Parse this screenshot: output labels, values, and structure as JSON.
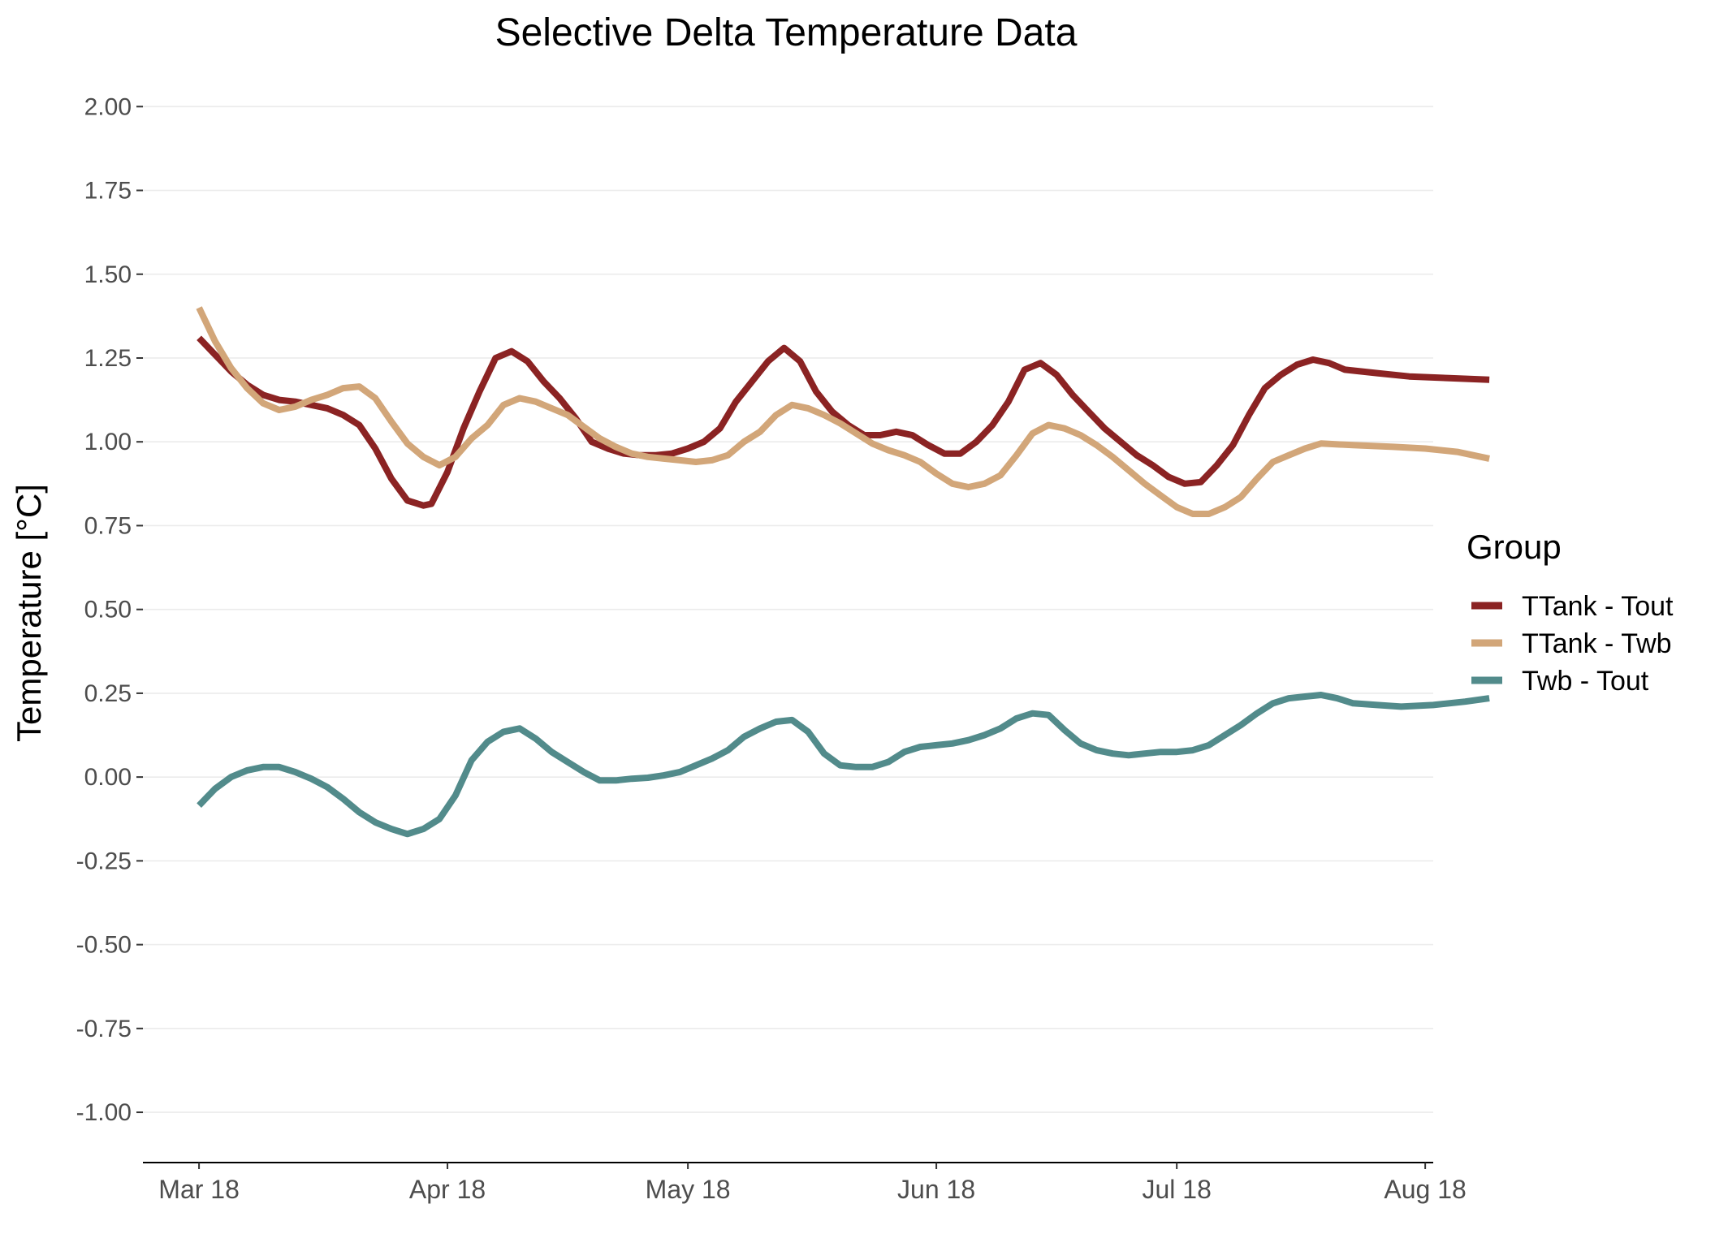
{
  "chart_data": {
    "type": "line",
    "title": "Selective Delta Temperature Data",
    "xlabel": "",
    "ylabel": "Temperature [°C]",
    "ylim": [
      -1.15,
      2.1
    ],
    "xlim": [
      "2018-03-11",
      "2018-08-19"
    ],
    "y_ticks": [
      -1.0,
      -0.75,
      -0.5,
      -0.25,
      0.0,
      0.25,
      0.5,
      0.75,
      1.0,
      1.25,
      1.5,
      1.75,
      2.0
    ],
    "y_tick_labels": [
      "-1.00",
      "-0.75",
      "-0.50",
      "-0.25",
      "0.00",
      "0.25",
      "0.50",
      "0.75",
      "1.00",
      "1.25",
      "1.50",
      "1.75",
      "2.00"
    ],
    "x_ticks": [
      "2018-03-18",
      "2018-04-18",
      "2018-05-18",
      "2018-06-18",
      "2018-07-18",
      "2018-08-18"
    ],
    "x_tick_labels": [
      "Mar 18",
      "Apr 18",
      "May 18",
      "Jun 18",
      "Jul 18",
      "Aug 18"
    ],
    "grid": "horizontal",
    "legend": {
      "title": "Group",
      "position": "right"
    },
    "series": [
      {
        "name": "TTank - Tout",
        "color": "#8b2323",
        "points": [
          [
            "2018-03-18",
            1.31
          ],
          [
            "2018-03-20",
            1.26
          ],
          [
            "2018-03-22",
            1.21
          ],
          [
            "2018-03-24",
            1.17
          ],
          [
            "2018-03-26",
            1.14
          ],
          [
            "2018-03-28",
            1.125
          ],
          [
            "2018-03-30",
            1.12
          ],
          [
            "2018-04-01",
            1.11
          ],
          [
            "2018-04-03",
            1.1
          ],
          [
            "2018-04-05",
            1.08
          ],
          [
            "2018-04-07",
            1.05
          ],
          [
            "2018-04-09",
            0.98
          ],
          [
            "2018-04-11",
            0.89
          ],
          [
            "2018-04-13",
            0.825
          ],
          [
            "2018-04-15",
            0.81
          ],
          [
            "2018-04-16",
            0.815
          ],
          [
            "2018-04-18",
            0.91
          ],
          [
            "2018-04-20",
            1.04
          ],
          [
            "2018-04-22",
            1.15
          ],
          [
            "2018-04-24",
            1.25
          ],
          [
            "2018-04-26",
            1.27
          ],
          [
            "2018-04-28",
            1.24
          ],
          [
            "2018-04-30",
            1.18
          ],
          [
            "2018-05-02",
            1.13
          ],
          [
            "2018-05-04",
            1.07
          ],
          [
            "2018-05-06",
            1.0
          ],
          [
            "2018-05-08",
            0.98
          ],
          [
            "2018-05-10",
            0.965
          ],
          [
            "2018-05-12",
            0.96
          ],
          [
            "2018-05-14",
            0.96
          ],
          [
            "2018-05-16",
            0.965
          ],
          [
            "2018-05-18",
            0.98
          ],
          [
            "2018-05-20",
            1.0
          ],
          [
            "2018-05-22",
            1.04
          ],
          [
            "2018-05-24",
            1.12
          ],
          [
            "2018-05-26",
            1.18
          ],
          [
            "2018-05-28",
            1.24
          ],
          [
            "2018-05-30",
            1.28
          ],
          [
            "2018-06-01",
            1.24
          ],
          [
            "2018-06-03",
            1.15
          ],
          [
            "2018-06-05",
            1.09
          ],
          [
            "2018-06-07",
            1.05
          ],
          [
            "2018-06-09",
            1.02
          ],
          [
            "2018-06-11",
            1.02
          ],
          [
            "2018-06-13",
            1.03
          ],
          [
            "2018-06-15",
            1.02
          ],
          [
            "2018-06-17",
            0.99
          ],
          [
            "2018-06-19",
            0.965
          ],
          [
            "2018-06-21",
            0.965
          ],
          [
            "2018-06-23",
            1.0
          ],
          [
            "2018-06-25",
            1.05
          ],
          [
            "2018-06-27",
            1.12
          ],
          [
            "2018-06-29",
            1.215
          ],
          [
            "2018-07-01",
            1.235
          ],
          [
            "2018-07-03",
            1.2
          ],
          [
            "2018-07-05",
            1.14
          ],
          [
            "2018-07-07",
            1.09
          ],
          [
            "2018-07-09",
            1.04
          ],
          [
            "2018-07-11",
            1.0
          ],
          [
            "2018-07-13",
            0.96
          ],
          [
            "2018-07-15",
            0.93
          ],
          [
            "2018-07-17",
            0.895
          ],
          [
            "2018-07-19",
            0.875
          ],
          [
            "2018-07-21",
            0.88
          ],
          [
            "2018-07-23",
            0.93
          ],
          [
            "2018-07-25",
            0.99
          ],
          [
            "2018-07-27",
            1.08
          ],
          [
            "2018-07-29",
            1.16
          ],
          [
            "2018-07-31",
            1.2
          ],
          [
            "2018-08-02",
            1.23
          ],
          [
            "2018-08-04",
            1.245
          ],
          [
            "2018-08-06",
            1.235
          ],
          [
            "2018-08-08",
            1.215
          ],
          [
            "2018-08-12",
            1.205
          ],
          [
            "2018-08-16",
            1.195
          ],
          [
            "2018-08-21",
            1.19
          ],
          [
            "2018-08-26",
            1.185
          ]
        ]
      },
      {
        "name": "TTank - Twb",
        "color": "#d2a679",
        "points": [
          [
            "2018-03-18",
            1.4
          ],
          [
            "2018-03-20",
            1.3
          ],
          [
            "2018-03-22",
            1.22
          ],
          [
            "2018-03-24",
            1.16
          ],
          [
            "2018-03-26",
            1.115
          ],
          [
            "2018-03-28",
            1.095
          ],
          [
            "2018-03-30",
            1.105
          ],
          [
            "2018-04-01",
            1.125
          ],
          [
            "2018-04-03",
            1.14
          ],
          [
            "2018-04-05",
            1.16
          ],
          [
            "2018-04-07",
            1.165
          ],
          [
            "2018-04-09",
            1.13
          ],
          [
            "2018-04-11",
            1.06
          ],
          [
            "2018-04-13",
            0.995
          ],
          [
            "2018-04-15",
            0.955
          ],
          [
            "2018-04-17",
            0.93
          ],
          [
            "2018-04-19",
            0.955
          ],
          [
            "2018-04-21",
            1.01
          ],
          [
            "2018-04-23",
            1.05
          ],
          [
            "2018-04-25",
            1.11
          ],
          [
            "2018-04-27",
            1.13
          ],
          [
            "2018-04-29",
            1.12
          ],
          [
            "2018-05-01",
            1.1
          ],
          [
            "2018-05-03",
            1.08
          ],
          [
            "2018-05-05",
            1.045
          ],
          [
            "2018-05-07",
            1.01
          ],
          [
            "2018-05-09",
            0.985
          ],
          [
            "2018-05-11",
            0.965
          ],
          [
            "2018-05-13",
            0.955
          ],
          [
            "2018-05-15",
            0.95
          ],
          [
            "2018-05-17",
            0.945
          ],
          [
            "2018-05-19",
            0.94
          ],
          [
            "2018-05-21",
            0.945
          ],
          [
            "2018-05-23",
            0.96
          ],
          [
            "2018-05-25",
            1.0
          ],
          [
            "2018-05-27",
            1.03
          ],
          [
            "2018-05-29",
            1.08
          ],
          [
            "2018-05-31",
            1.11
          ],
          [
            "2018-06-02",
            1.1
          ],
          [
            "2018-06-04",
            1.08
          ],
          [
            "2018-06-06",
            1.055
          ],
          [
            "2018-06-08",
            1.025
          ],
          [
            "2018-06-10",
            0.995
          ],
          [
            "2018-06-12",
            0.975
          ],
          [
            "2018-06-14",
            0.96
          ],
          [
            "2018-06-16",
            0.94
          ],
          [
            "2018-06-18",
            0.905
          ],
          [
            "2018-06-20",
            0.875
          ],
          [
            "2018-06-22",
            0.865
          ],
          [
            "2018-06-24",
            0.875
          ],
          [
            "2018-06-26",
            0.9
          ],
          [
            "2018-06-28",
            0.96
          ],
          [
            "2018-06-30",
            1.025
          ],
          [
            "2018-07-02",
            1.05
          ],
          [
            "2018-07-04",
            1.04
          ],
          [
            "2018-07-06",
            1.02
          ],
          [
            "2018-07-08",
            0.99
          ],
          [
            "2018-07-10",
            0.955
          ],
          [
            "2018-07-12",
            0.915
          ],
          [
            "2018-07-14",
            0.875
          ],
          [
            "2018-07-16",
            0.84
          ],
          [
            "2018-07-18",
            0.805
          ],
          [
            "2018-07-20",
            0.785
          ],
          [
            "2018-07-22",
            0.785
          ],
          [
            "2018-07-24",
            0.805
          ],
          [
            "2018-07-26",
            0.835
          ],
          [
            "2018-07-28",
            0.89
          ],
          [
            "2018-07-30",
            0.94
          ],
          [
            "2018-08-01",
            0.96
          ],
          [
            "2018-08-03",
            0.98
          ],
          [
            "2018-08-05",
            0.995
          ],
          [
            "2018-08-09",
            0.99
          ],
          [
            "2018-08-14",
            0.985
          ],
          [
            "2018-08-18",
            0.98
          ],
          [
            "2018-08-22",
            0.97
          ],
          [
            "2018-08-26",
            0.95
          ]
        ]
      },
      {
        "name": "Twb - Tout",
        "color": "#528b8b",
        "points": [
          [
            "2018-03-18",
            -0.085
          ],
          [
            "2018-03-20",
            -0.035
          ],
          [
            "2018-03-22",
            0.0
          ],
          [
            "2018-03-24",
            0.02
          ],
          [
            "2018-03-26",
            0.03
          ],
          [
            "2018-03-28",
            0.03
          ],
          [
            "2018-03-30",
            0.015
          ],
          [
            "2018-04-01",
            -0.005
          ],
          [
            "2018-04-03",
            -0.03
          ],
          [
            "2018-04-05",
            -0.065
          ],
          [
            "2018-04-07",
            -0.105
          ],
          [
            "2018-04-09",
            -0.135
          ],
          [
            "2018-04-11",
            -0.155
          ],
          [
            "2018-04-13",
            -0.17
          ],
          [
            "2018-04-15",
            -0.155
          ],
          [
            "2018-04-17",
            -0.125
          ],
          [
            "2018-04-19",
            -0.055
          ],
          [
            "2018-04-21",
            0.05
          ],
          [
            "2018-04-23",
            0.105
          ],
          [
            "2018-04-25",
            0.135
          ],
          [
            "2018-04-27",
            0.145
          ],
          [
            "2018-04-29",
            0.115
          ],
          [
            "2018-05-01",
            0.075
          ],
          [
            "2018-05-03",
            0.045
          ],
          [
            "2018-05-05",
            0.015
          ],
          [
            "2018-05-07",
            -0.01
          ],
          [
            "2018-05-09",
            -0.01
          ],
          [
            "2018-05-11",
            -0.005
          ],
          [
            "2018-05-13",
            -0.002
          ],
          [
            "2018-05-15",
            0.005
          ],
          [
            "2018-05-17",
            0.015
          ],
          [
            "2018-05-19",
            0.035
          ],
          [
            "2018-05-21",
            0.055
          ],
          [
            "2018-05-23",
            0.08
          ],
          [
            "2018-05-25",
            0.12
          ],
          [
            "2018-05-27",
            0.145
          ],
          [
            "2018-05-29",
            0.165
          ],
          [
            "2018-05-31",
            0.17
          ],
          [
            "2018-06-02",
            0.135
          ],
          [
            "2018-06-04",
            0.07
          ],
          [
            "2018-06-06",
            0.035
          ],
          [
            "2018-06-08",
            0.03
          ],
          [
            "2018-06-10",
            0.03
          ],
          [
            "2018-06-12",
            0.045
          ],
          [
            "2018-06-14",
            0.075
          ],
          [
            "2018-06-16",
            0.09
          ],
          [
            "2018-06-18",
            0.095
          ],
          [
            "2018-06-20",
            0.1
          ],
          [
            "2018-06-22",
            0.11
          ],
          [
            "2018-06-24",
            0.125
          ],
          [
            "2018-06-26",
            0.145
          ],
          [
            "2018-06-28",
            0.175
          ],
          [
            "2018-06-30",
            0.19
          ],
          [
            "2018-07-02",
            0.185
          ],
          [
            "2018-07-04",
            0.14
          ],
          [
            "2018-07-06",
            0.1
          ],
          [
            "2018-07-08",
            0.08
          ],
          [
            "2018-07-10",
            0.07
          ],
          [
            "2018-07-12",
            0.065
          ],
          [
            "2018-07-14",
            0.07
          ],
          [
            "2018-07-16",
            0.075
          ],
          [
            "2018-07-18",
            0.075
          ],
          [
            "2018-07-20",
            0.08
          ],
          [
            "2018-07-22",
            0.095
          ],
          [
            "2018-07-24",
            0.125
          ],
          [
            "2018-07-26",
            0.155
          ],
          [
            "2018-07-28",
            0.19
          ],
          [
            "2018-07-30",
            0.22
          ],
          [
            "2018-08-01",
            0.235
          ],
          [
            "2018-08-03",
            0.24
          ],
          [
            "2018-08-05",
            0.245
          ],
          [
            "2018-08-07",
            0.235
          ],
          [
            "2018-08-09",
            0.22
          ],
          [
            "2018-08-12",
            0.215
          ],
          [
            "2018-08-15",
            0.21
          ],
          [
            "2018-08-19",
            0.215
          ],
          [
            "2018-08-23",
            0.225
          ],
          [
            "2018-08-26",
            0.235
          ]
        ]
      }
    ]
  }
}
